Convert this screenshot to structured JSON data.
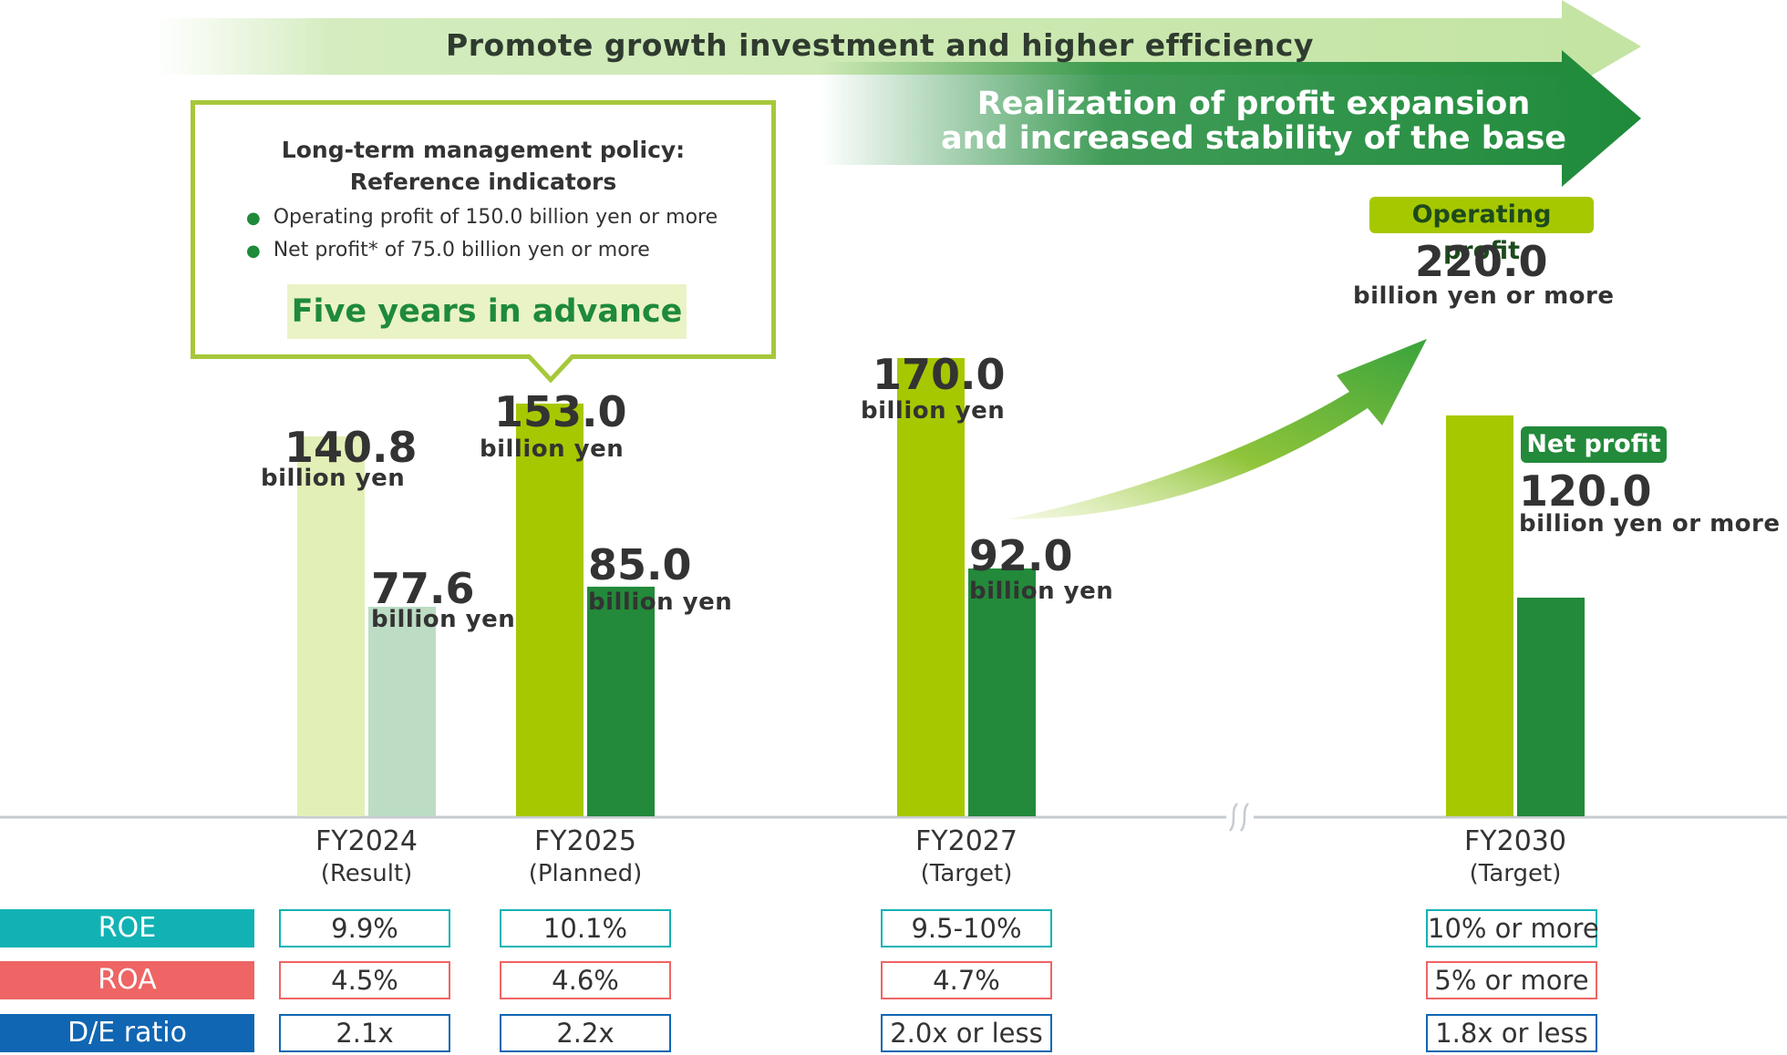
{
  "colors": {
    "op_result": "#e2efb6",
    "net_result": "#bcdcc4",
    "op": "#a6c800",
    "net": "#228a3a",
    "roe": "#12b2b4",
    "roa": "#ef6464",
    "de": "#1066b2",
    "baseline": "#c6cbd0"
  },
  "banner_top": "Promote growth investment and higher efficiency",
  "banner_second": {
    "line1": "Realization of profit expansion",
    "line2": "and increased stability of the base"
  },
  "callout": {
    "title_line1": "Long-term management policy:",
    "title_line2": "Reference indicators",
    "bullets": [
      "Operating profit of 150.0 billion yen or more",
      "Net profit* of 75.0 billion yen or more"
    ],
    "highlight": "Five years in advance"
  },
  "tags": {
    "op": "Operating profit",
    "net": "Net profit"
  },
  "chart_data": {
    "type": "bar",
    "categories": [
      "FY2024",
      "FY2025",
      "FY2027",
      "FY2030"
    ],
    "category_notes": [
      "(Result)",
      "(Planned)",
      "(Target)",
      "(Target)"
    ],
    "series": [
      {
        "name": "Operating profit",
        "values": [
          140.8,
          153.0,
          170.0,
          220.0
        ],
        "value_labels": [
          "140.8",
          "153.0",
          "170.0",
          "220.0"
        ],
        "unit_labels": [
          "billion yen",
          "billion yen",
          "billion yen",
          "billion yen or more"
        ]
      },
      {
        "name": "Net profit",
        "values": [
          77.6,
          85.0,
          92.0,
          120.0
        ],
        "value_labels": [
          "77.6",
          "85.0",
          "92.0",
          "120.0"
        ],
        "unit_labels": [
          "billion yen",
          "billion yen",
          "billion yen",
          "billion yen or more"
        ]
      }
    ],
    "axis_break_between": [
      "FY2027",
      "FY2030"
    ]
  },
  "metrics": [
    {
      "label": "ROE",
      "values": [
        "9.9%",
        "10.1%",
        "9.5-10%",
        "10% or more"
      ]
    },
    {
      "label": "ROA",
      "values": [
        "4.5%",
        "4.6%",
        "4.7%",
        "5% or more"
      ]
    },
    {
      "label": "D/E ratio",
      "values": [
        "2.1x",
        "2.2x",
        "2.0x or less",
        "1.8x or less"
      ]
    }
  ]
}
